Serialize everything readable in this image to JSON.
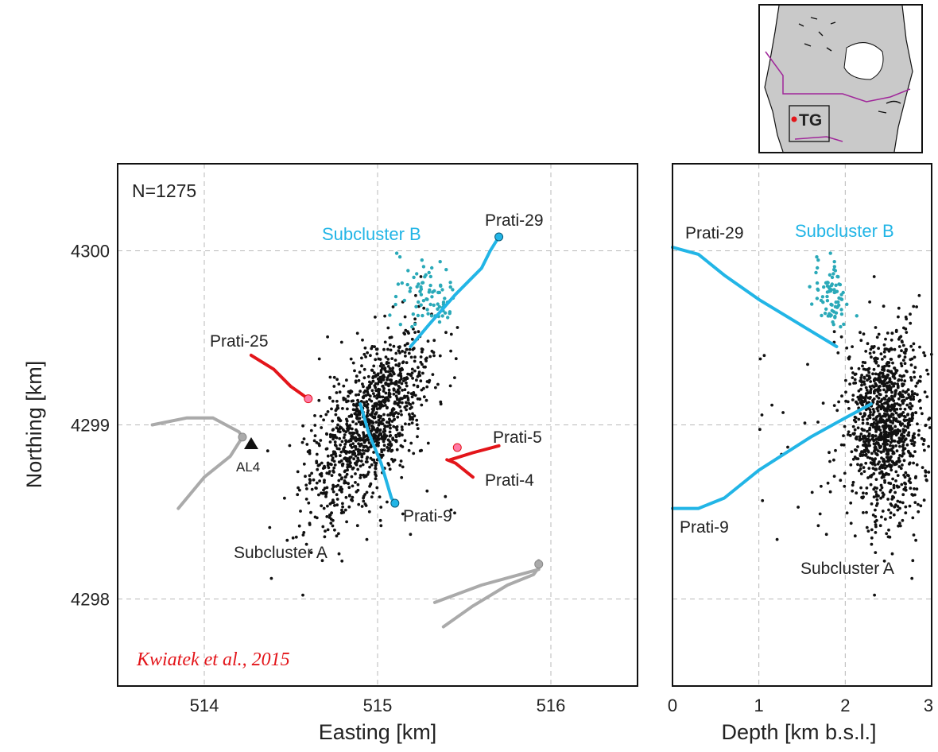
{
  "chart_data": [
    {
      "type": "scatter",
      "panel": "map",
      "xlabel": "Easting [km]",
      "ylabel": "Northing [km]",
      "xlim": [
        513.5,
        516.5
      ],
      "ylim": [
        4297.5,
        4300.5
      ],
      "xticks": [
        514,
        515,
        516
      ],
      "yticks": [
        4298,
        4299,
        4300
      ],
      "grid": true,
      "count_label": "N=1275",
      "citation": "Kwiatek et al., 2015",
      "event_cloud": {
        "center": [
          514.95,
          4299.0
        ],
        "count": 1275
      },
      "subcluster_b_center": [
        515.3,
        4299.75
      ],
      "station": {
        "name": "AL4",
        "x": 514.27,
        "y": 4298.88
      },
      "labels": {
        "subcluster_a": "Subcluster A",
        "subcluster_b": "Subcluster B"
      },
      "wells": [
        {
          "name": "Prati-29",
          "color": "#22b5e6",
          "points": [
            [
              515.19,
              4299.45
            ],
            [
              515.3,
              4299.58
            ],
            [
              515.45,
              4299.75
            ],
            [
              515.6,
              4299.9
            ],
            [
              515.65,
              4300.0
            ],
            [
              515.7,
              4300.08
            ]
          ]
        },
        {
          "name": "Prati-9",
          "color": "#22b5e6",
          "points": [
            [
              514.9,
              4299.12
            ],
            [
              514.95,
              4298.95
            ],
            [
              515.02,
              4298.78
            ],
            [
              515.08,
              4298.58
            ],
            [
              515.1,
              4298.55
            ]
          ]
        },
        {
          "name": "Prati-25",
          "color": "#e3151a",
          "points": [
            [
              514.27,
              4299.4
            ],
            [
              514.4,
              4299.32
            ],
            [
              514.5,
              4299.22
            ],
            [
              514.6,
              4299.15
            ]
          ]
        },
        {
          "name": "Prati-5",
          "color": "#e3151a",
          "points": [
            [
              515.7,
              4298.88
            ],
            [
              515.55,
              4298.84
            ],
            [
              515.42,
              4298.8
            ]
          ]
        },
        {
          "name": "Prati-4",
          "color": "#e3151a",
          "points": [
            [
              515.55,
              4298.7
            ],
            [
              515.45,
              4298.78
            ],
            [
              515.4,
              4298.8
            ]
          ]
        },
        {
          "name": "",
          "color": "#aaaaaa",
          "points": [
            [
              513.7,
              4299.0
            ],
            [
              513.9,
              4299.04
            ],
            [
              514.05,
              4299.04
            ],
            [
              514.2,
              4298.96
            ],
            [
              514.22,
              4298.93
            ]
          ]
        },
        {
          "name": "",
          "color": "#aaaaaa",
          "points": [
            [
              513.85,
              4298.52
            ],
            [
              514.0,
              4298.7
            ],
            [
              514.15,
              4298.82
            ],
            [
              514.22,
              4298.93
            ]
          ]
        },
        {
          "name": "",
          "color": "#aaaaaa",
          "points": [
            [
              515.33,
              4297.98
            ],
            [
              515.6,
              4298.08
            ],
            [
              515.82,
              4298.14
            ],
            [
              515.93,
              4298.17
            ],
            [
              515.93,
              4298.22
            ]
          ]
        },
        {
          "name": "",
          "color": "#aaaaaa",
          "points": [
            [
              515.38,
              4297.84
            ],
            [
              515.55,
              4297.96
            ],
            [
              515.75,
              4298.08
            ],
            [
              515.9,
              4298.14
            ],
            [
              515.93,
              4298.18
            ]
          ]
        }
      ]
    },
    {
      "type": "scatter",
      "panel": "section",
      "xlabel": "Depth [km b.s.l.]",
      "ylabel": "",
      "xlim": [
        0,
        3
      ],
      "ylim": [
        4297.5,
        4300.5
      ],
      "xticks": [
        0,
        1,
        2,
        3
      ],
      "grid": true,
      "event_cloud": {
        "center": [
          2.45,
          4299.0
        ]
      },
      "subcluster_b_center": [
        1.85,
        4299.75
      ],
      "labels": {
        "subcluster_a": "Subcluster A",
        "subcluster_b": "Subcluster B"
      },
      "wells": [
        {
          "name": "Prati-29",
          "color": "#22b5e6",
          "points": [
            [
              0,
              4300.02
            ],
            [
              0.3,
              4299.98
            ],
            [
              0.6,
              4299.86
            ],
            [
              1.0,
              4299.72
            ],
            [
              1.4,
              4299.6
            ],
            [
              1.9,
              4299.45
            ]
          ]
        },
        {
          "name": "Prati-9",
          "color": "#22b5e6",
          "points": [
            [
              0,
              4298.52
            ],
            [
              0.3,
              4298.52
            ],
            [
              0.6,
              4298.58
            ],
            [
              1.0,
              4298.74
            ],
            [
              1.6,
              4298.93
            ],
            [
              2.0,
              4299.04
            ],
            [
              2.3,
              4299.12
            ]
          ]
        }
      ]
    }
  ],
  "inset": {
    "label": "TG"
  }
}
